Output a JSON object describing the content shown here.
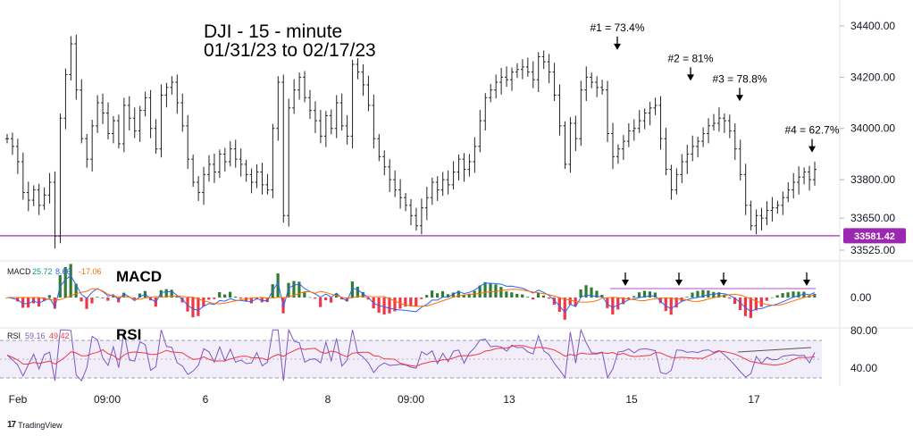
{
  "chart_data": {
    "type": "candlestick",
    "title": [
      "DJI - 15 - minute",
      "01/31/23 to 02/17/23"
    ],
    "price_axis": {
      "ticks": [
        "34400.00",
        "34200.00",
        "34000.00",
        "33800.00",
        "33650.00",
        "33525.00"
      ],
      "tick_values": [
        34400,
        34200,
        34000,
        33800,
        33650,
        33525
      ],
      "range": [
        33500,
        34450
      ]
    },
    "support_line": {
      "value": 33581.42,
      "label": "33581.42",
      "color": "#b44ec8"
    },
    "x_axis": {
      "ticks": [
        "Feb",
        "09:00",
        "6",
        "8",
        "09:00",
        "13",
        "15",
        "17"
      ]
    },
    "price_series": [
      33960,
      33930,
      33870,
      33750,
      33720,
      33760,
      33700,
      33740,
      33790,
      33580,
      34040,
      34210,
      34330,
      34150,
      33960,
      33880,
      34010,
      34100,
      34060,
      33980,
      34030,
      33940,
      34090,
      34040,
      33990,
      34070,
      34120,
      34000,
      33920,
      34130,
      34160,
      34180,
      34100,
      34010,
      33880,
      33790,
      33750,
      33820,
      33860,
      33830,
      33900,
      33870,
      33920,
      33880,
      33860,
      33820,
      33790,
      33830,
      33780,
      33760,
      34000,
      34180,
      33660,
      34080,
      34150,
      34200,
      34120,
      34070,
      34030,
      33970,
      34050,
      34000,
      34100,
      34010,
      33970,
      34250,
      34220,
      34170,
      34090,
      33960,
      33890,
      33850,
      33800,
      33760,
      33730,
      33700,
      33660,
      33620,
      33690,
      33730,
      33790,
      33760,
      33800,
      33780,
      33830,
      33880,
      33840,
      33870,
      33930,
      34030,
      34120,
      34150,
      34180,
      34200,
      34190,
      34220,
      34230,
      34240,
      34220,
      34190,
      34280,
      34260,
      34220,
      34130,
      34010,
      33860,
      34020,
      33960,
      34150,
      34200,
      34180,
      34160,
      34150,
      33980,
      33890,
      33920,
      33950,
      33990,
      34000,
      34030,
      34060,
      34080,
      34090,
      33960,
      33840,
      33760,
      33820,
      33870,
      33900,
      33930,
      33950,
      33980,
      34010,
      34020,
      34040,
      34030,
      33990,
      33920,
      33820,
      33700,
      33620,
      33660,
      33650,
      33680,
      33690,
      33700,
      33730,
      33760,
      33790,
      33810,
      33830,
      33800,
      33840
    ],
    "annotations": [
      {
        "label": "#1 = 73.4%",
        "value": 34240
      },
      {
        "label": "#2 = 81%",
        "value": 34120
      },
      {
        "label": "#3 = 78.8%",
        "value": 34040
      },
      {
        "label": "#4 = 62.7%",
        "value": 33840
      }
    ],
    "macd": {
      "label": "MACD",
      "legend": {
        "name": "MACD",
        "values": [
          "25.72",
          "8.66",
          "-17.06"
        ],
        "colors": [
          "#089981",
          "#2962ff",
          "#ff6d00"
        ]
      },
      "axis_ticks": [
        "0.00"
      ],
      "histogram_color_up": "#2e7d32",
      "histogram_color_down": "#f23645",
      "macd_color": "#2962ff",
      "signal_color": "#ff6d00"
    },
    "rsi": {
      "label": "RSI",
      "legend": {
        "name": "RSI",
        "values": [
          "59.16",
          "49.42"
        ],
        "colors": [
          "#7e57c2",
          "#f23645"
        ]
      },
      "axis_ticks": [
        "80.00",
        "40.00"
      ],
      "tick_values": [
        80,
        40
      ],
      "bands": [
        70,
        30
      ],
      "rsi_color": "#7e57c2",
      "ma_color": "#f23645"
    }
  },
  "footer": {
    "brand": "TradingView",
    "logo": "tradingview-logo"
  }
}
